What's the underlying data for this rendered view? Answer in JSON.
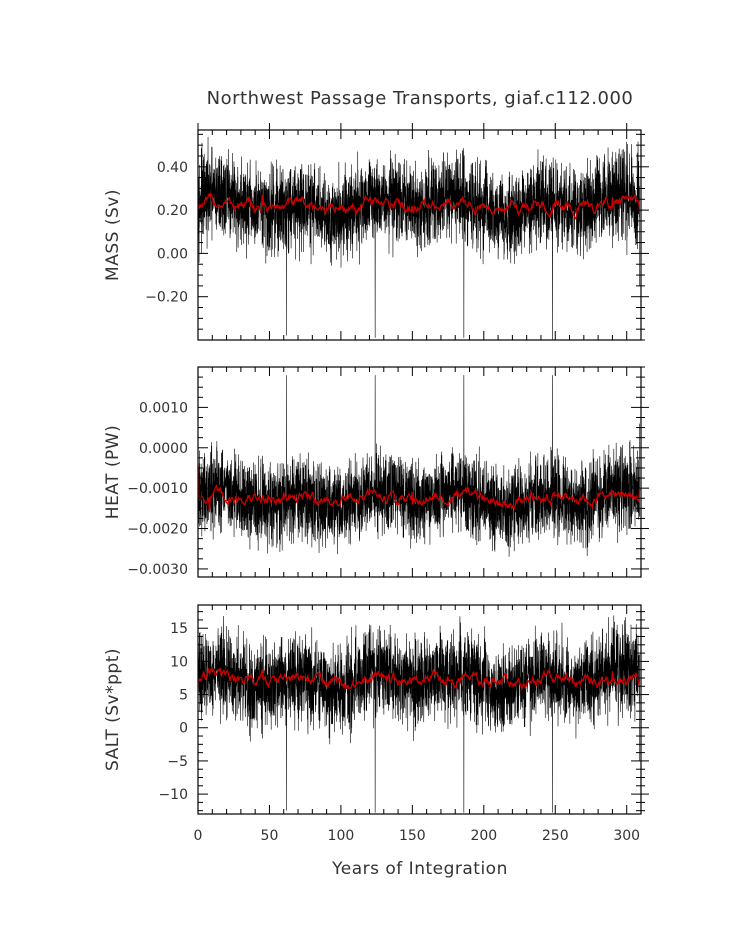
{
  "title": "Northwest Passage Transports, giaf.c112.000",
  "xlabel": "Years of Integration",
  "colors": {
    "raw": "#000000",
    "smooth": "#cc0000"
  },
  "chart_data": [
    {
      "type": "line",
      "ylabel": "MASS (Sv)",
      "xlim": [
        0,
        310
      ],
      "ylim": [
        -0.4,
        0.57
      ],
      "yticks": [
        {
          "v": 0.4,
          "label": "0.40"
        },
        {
          "v": 0.2,
          "label": "0.20"
        },
        {
          "v": 0.0,
          "label": "0.00"
        },
        {
          "v": -0.2,
          "label": "−0.20"
        }
      ],
      "series": [
        {
          "role": "monthly",
          "mean": 0.22,
          "amplitude": 0.14,
          "spike_low": -0.38,
          "key_points": [
            [
              0,
              0.2
            ],
            [
              62,
              -0.38
            ],
            [
              124,
              -0.39
            ],
            [
              186,
              -0.39
            ],
            [
              248,
              -0.4
            ],
            [
              309,
              -0.15
            ]
          ]
        },
        {
          "role": "annual-mean",
          "mean": 0.22,
          "amplitude": 0.04,
          "key_points": [
            [
              0,
              0.2
            ],
            [
              45,
              0.27
            ],
            [
              90,
              0.21
            ],
            [
              150,
              0.22
            ],
            [
              200,
              0.21
            ],
            [
              290,
              0.26
            ],
            [
              309,
              0.19
            ]
          ]
        }
      ]
    },
    {
      "type": "line",
      "ylabel": "HEAT (PW)",
      "xlim": [
        0,
        310
      ],
      "ylim": [
        -0.0032,
        0.002
      ],
      "yticks": [
        {
          "v": 0.001,
          "label": "0.0010"
        },
        {
          "v": 0.0,
          "label": "0.0000"
        },
        {
          "v": -0.001,
          "label": "−0.0010"
        },
        {
          "v": -0.002,
          "label": "−0.0020"
        },
        {
          "v": -0.003,
          "label": "−0.0030"
        }
      ],
      "series": [
        {
          "role": "monthly",
          "mean": -0.00125,
          "amplitude": 0.0007,
          "spike_high": 0.0018,
          "key_points": [
            [
              0,
              -0.0004
            ],
            [
              10,
              -0.0016
            ],
            [
              62,
              0.0018
            ],
            [
              124,
              0.0018
            ],
            [
              186,
              0.0018
            ],
            [
              248,
              0.0018
            ],
            [
              309,
              0.0006
            ]
          ]
        },
        {
          "role": "annual-mean",
          "mean": -0.00125,
          "amplitude": 0.0002,
          "key_points": [
            [
              0,
              -0.0004
            ],
            [
              8,
              -0.0016
            ],
            [
              60,
              -0.0011
            ],
            [
              150,
              -0.0011
            ],
            [
              250,
              -0.0012
            ],
            [
              309,
              -0.001
            ]
          ]
        }
      ]
    },
    {
      "type": "line",
      "ylabel": "SALT (Sv*ppt)",
      "xlim": [
        0,
        310
      ],
      "ylim": [
        -13,
        18.5
      ],
      "yticks": [
        {
          "v": 15,
          "label": "15"
        },
        {
          "v": 10,
          "label": "10"
        },
        {
          "v": 5,
          "label": "5"
        },
        {
          "v": 0,
          "label": "0"
        },
        {
          "v": -5,
          "label": "−5"
        },
        {
          "v": -10,
          "label": "−10"
        }
      ],
      "xticks": [
        {
          "v": 0,
          "label": "0"
        },
        {
          "v": 50,
          "label": "50"
        },
        {
          "v": 100,
          "label": "100"
        },
        {
          "v": 150,
          "label": "150"
        },
        {
          "v": 200,
          "label": "200"
        },
        {
          "v": 250,
          "label": "250"
        },
        {
          "v": 300,
          "label": "300"
        }
      ],
      "series": [
        {
          "role": "monthly",
          "mean": 7.2,
          "amplitude": 4.5,
          "spike_low": -12.5,
          "key_points": [
            [
              0,
              7
            ],
            [
              62,
              -12.5
            ],
            [
              124,
              -12.8
            ],
            [
              186,
              -12.8
            ],
            [
              248,
              -12.8
            ],
            [
              309,
              -5
            ]
          ]
        },
        {
          "role": "annual-mean",
          "mean": 7.2,
          "amplitude": 1.3,
          "key_points": [
            [
              0,
              6.5
            ],
            [
              45,
              8.8
            ],
            [
              90,
              7
            ],
            [
              150,
              7.3
            ],
            [
              200,
              7
            ],
            [
              290,
              8.5
            ],
            [
              309,
              6.2
            ]
          ]
        }
      ]
    }
  ]
}
